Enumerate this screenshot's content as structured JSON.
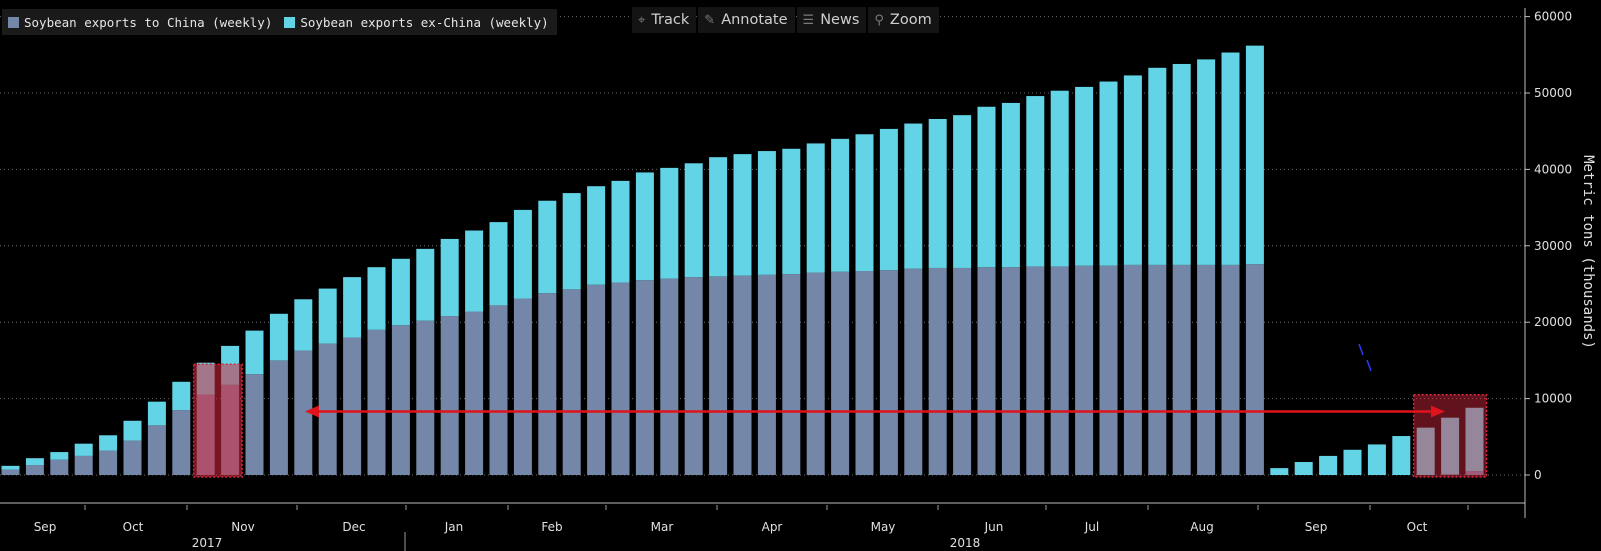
{
  "legend": {
    "china_label": "Soybean exports to China (weekly)",
    "exchina_label": "Soybean exports ex-China (weekly)"
  },
  "toolbar": {
    "track": "Track",
    "annotate": "Annotate",
    "news": "News",
    "zoom": "Zoom",
    "track_icon": "crosshair-icon",
    "annotate_icon": "pencil-icon",
    "news_icon": "news-icon",
    "zoom_icon": "magnifier-icon"
  },
  "colors": {
    "china": "#7487a8",
    "exchina": "#62d4e6",
    "highlight": "#d8283e",
    "arrow": "#e0131b"
  },
  "chart_data": {
    "type": "bar",
    "stacked": true,
    "ylabel": "Metric tons (thousands)",
    "ylim": [
      -4000,
      61000
    ],
    "yticks": [
      0,
      10000,
      20000,
      30000,
      40000,
      50000,
      60000
    ],
    "grid": true,
    "x_month_labels": [
      "Sep",
      "Oct",
      "Nov",
      "Dec",
      "Jan",
      "Feb",
      "Mar",
      "Apr",
      "May",
      "Jun",
      "Jul",
      "Aug",
      "Sep",
      "Oct"
    ],
    "x_year_labels": [
      "2017",
      "2018"
    ],
    "legend_position": "top-left",
    "series": [
      {
        "name": "Soybean exports to China (weekly)",
        "values": [
          700,
          1300,
          2000,
          2500,
          3200,
          4500,
          6500,
          8500,
          10500,
          11800,
          13200,
          15000,
          16300,
          17200,
          18000,
          19000,
          19600,
          20200,
          20800,
          21400,
          22200,
          23100,
          23800,
          24300,
          24900,
          25200,
          25500,
          25700,
          25900,
          26000,
          26100,
          26200,
          26300,
          26500,
          26600,
          26700,
          26800,
          27000,
          27100,
          27100,
          27200,
          27200,
          27300,
          27300,
          27400,
          27400,
          27500,
          27500,
          27500,
          27500,
          27500,
          27600,
          0,
          0,
          0,
          0,
          0,
          0,
          0,
          100,
          500
        ]
      },
      {
        "name": "Soybean exports ex-China (weekly)",
        "values": [
          500,
          900,
          1000,
          1600,
          2000,
          2600,
          3100,
          3700,
          4200,
          5100,
          5700,
          6100,
          6700,
          7200,
          7900,
          8200,
          8700,
          9400,
          10100,
          10600,
          10900,
          11600,
          12100,
          12600,
          12900,
          13300,
          14100,
          14500,
          14900,
          15600,
          15900,
          16200,
          16400,
          16900,
          17400,
          17900,
          18500,
          19000,
          19500,
          20000,
          21000,
          21500,
          22300,
          23000,
          23400,
          24100,
          24800,
          25800,
          26300,
          26900,
          27800,
          28600,
          900,
          1700,
          2500,
          3300,
          4000,
          5100,
          6200,
          7400,
          8300
        ]
      }
    ],
    "annotations": {
      "highlight_boxes": [
        {
          "x_from": "Nov 2017",
          "x_to": "Nov 2017",
          "y_range": [
            0,
            14500
          ]
        },
        {
          "x_from": "Oct 2018",
          "x_to": "Oct 2018",
          "y_range": [
            0,
            10500
          ]
        }
      ],
      "double_arrow": {
        "y": 8500,
        "x_from": "Nov 2017",
        "x_to": "Oct 2018"
      }
    }
  }
}
